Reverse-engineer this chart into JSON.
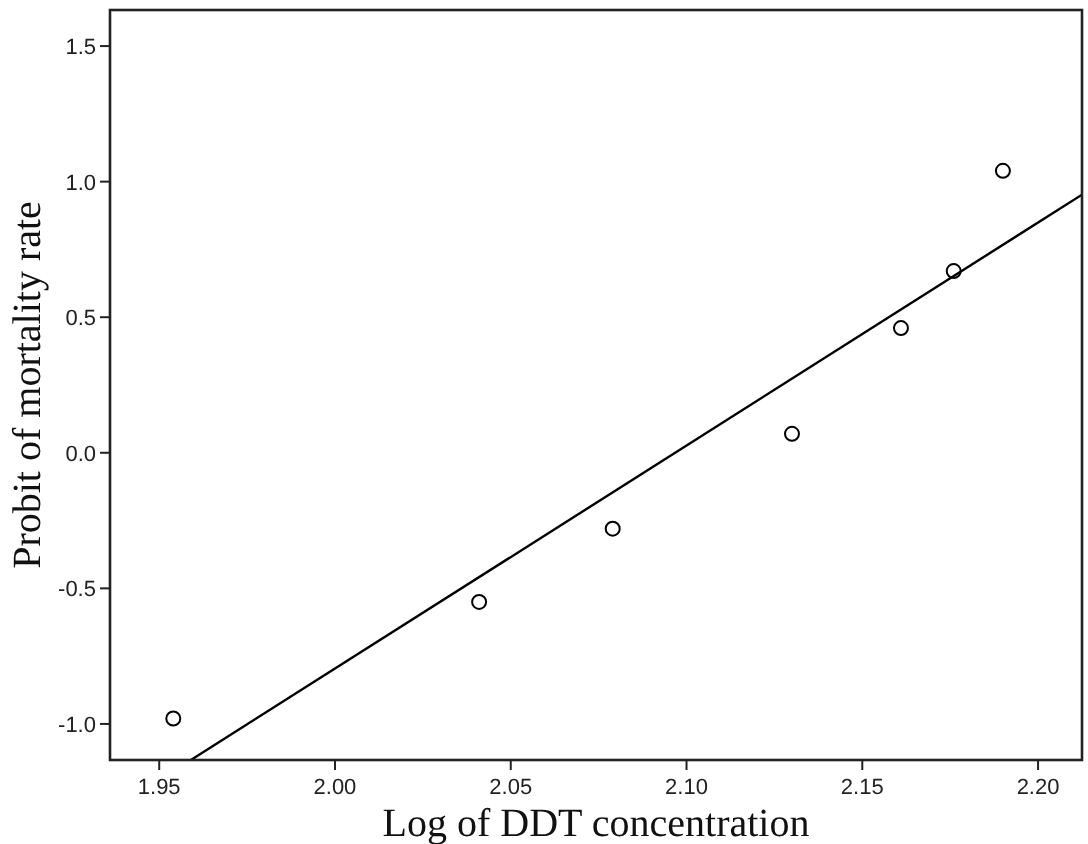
{
  "chart_data": {
    "type": "scatter",
    "xlabel": "Log of DDT concentration",
    "ylabel": "Probit of mortality rate",
    "xlim": [
      1.936,
      2.2125
    ],
    "ylim": [
      -1.133,
      1.633
    ],
    "xticks": [
      {
        "value": 1.95,
        "label": "1.95"
      },
      {
        "value": 2.0,
        "label": "2.00"
      },
      {
        "value": 2.05,
        "label": "2.05"
      },
      {
        "value": 2.1,
        "label": "2.10"
      },
      {
        "value": 2.15,
        "label": "2.15"
      },
      {
        "value": 2.2,
        "label": "2.20"
      }
    ],
    "yticks": [
      {
        "value": -1.0,
        "label": "-1.0"
      },
      {
        "value": -0.5,
        "label": "-0.5"
      },
      {
        "value": 0.0,
        "label": "0.0"
      },
      {
        "value": 0.5,
        "label": "0.5"
      },
      {
        "value": 1.0,
        "label": "1.0"
      },
      {
        "value": 1.5,
        "label": "1.5"
      }
    ],
    "grid": false,
    "series": [
      {
        "color": "#000000",
        "marker": "circle",
        "x": [
          1.954,
          2.041,
          2.079,
          2.13,
          2.161,
          2.176,
          2.19
        ],
        "values": [
          -0.98,
          -0.55,
          -0.28,
          0.07,
          0.46,
          0.67,
          1.04
        ]
      },
      {
        "type": "line",
        "color": "#000000",
        "marker": "none",
        "line_style": "solid",
        "x": [
          1.959,
          2.2125
        ],
        "values": [
          -1.133,
          0.952
        ]
      }
    ]
  }
}
